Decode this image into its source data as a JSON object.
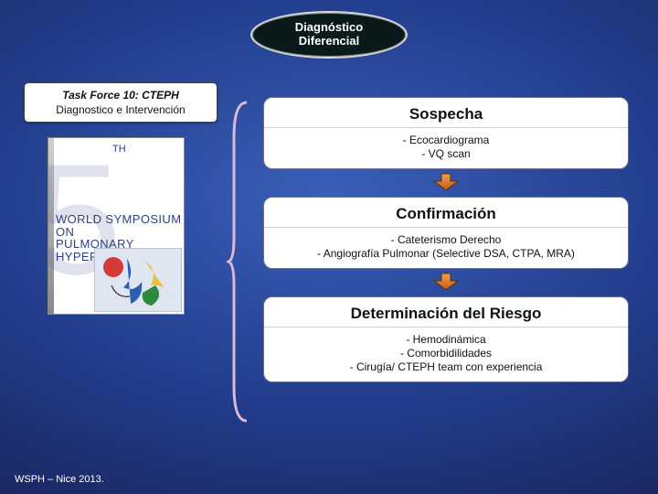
{
  "colors": {
    "oval_border": "#d6d6d6",
    "oval_fill": "#0a1a1a",
    "box_border": "#6a7093",
    "arrow_fill": "#d46a1e",
    "arrow_stroke": "#5a2f0a",
    "brace": "#d9b9d6"
  },
  "title": {
    "line1": "Diagnóstico",
    "line2": "Diferencial"
  },
  "left": {
    "box1": "Task Force 10: CTEPH",
    "box2": "Diagnostico e Intervención",
    "book": {
      "th": "TH",
      "line1": "WORLD SYMPOSIUM ON",
      "line2": "PULMONARY HYPERTENSION"
    }
  },
  "right": {
    "b1": {
      "head": "Sospecha",
      "body": "- Ecocardiograma\n- VQ scan"
    },
    "b2": {
      "head": "Confirmación",
      "body": "- Cateterismo Derecho\n- Angiografía Pulmonar (Selective DSA, CTPA, MRA)"
    },
    "b3": {
      "head": "Determinación del Riesgo",
      "body": "- Hemodinámica\n- Comorbidilidades\n- Cirugía/ CTEPH team con experiencia"
    }
  },
  "footer": "WSPH – Nice 2013.",
  "style": {
    "title_fs": 13,
    "rhead_fs": 17,
    "rbody_fs": 12,
    "lbox_fs": 12,
    "footer_fs": 11,
    "arrow_w": 28,
    "arrow_h": 20,
    "brace_w": 26,
    "brace_h": 352
  }
}
